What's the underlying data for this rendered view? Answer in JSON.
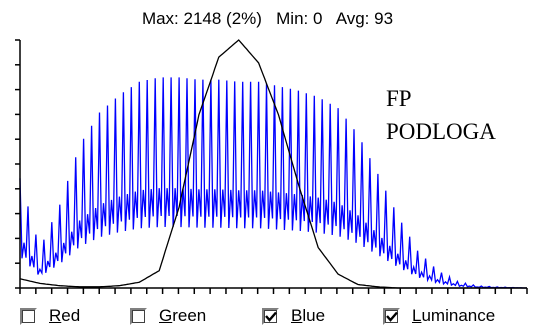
{
  "stats": {
    "max_label": "Max:",
    "max_value": "2148 (2%)",
    "min_label": "Min:",
    "min_value": "0",
    "avg_label": "Avg:",
    "avg_value": "93"
  },
  "annotation": {
    "line1": "FP",
    "line2": "PODLOGA"
  },
  "checkboxes": [
    {
      "id": "red",
      "first": "R",
      "rest": "ed",
      "checked": false
    },
    {
      "id": "green",
      "first": "G",
      "rest": "reen",
      "checked": false
    },
    {
      "id": "blue",
      "first": "B",
      "rest": "lue",
      "checked": true
    },
    {
      "id": "luminance",
      "first": "L",
      "rest": "uminance",
      "checked": true
    }
  ],
  "colors": {
    "blue_series": "#0000ff",
    "luminance_series": "#000000"
  },
  "chart_data": {
    "type": "line",
    "x_range": [
      0,
      255
    ],
    "y_range": [
      0,
      2148
    ],
    "series": [
      {
        "name": "Blue",
        "x": [
          0,
          10,
          20,
          30,
          40,
          50,
          60,
          70,
          80,
          90,
          100,
          110,
          120,
          130,
          140,
          150,
          160,
          170,
          180,
          190,
          200,
          210,
          220,
          230,
          240,
          255
        ],
        "values": [
          500,
          180,
          380,
          650,
          800,
          880,
          940,
          960,
          960,
          950,
          950,
          940,
          940,
          920,
          900,
          870,
          820,
          700,
          520,
          330,
          170,
          80,
          30,
          10,
          5,
          0
        ]
      },
      {
        "name": "Luminance",
        "x": [
          0,
          10,
          20,
          30,
          40,
          50,
          60,
          70,
          80,
          90,
          100,
          110,
          120,
          130,
          140,
          150,
          160,
          170,
          180,
          190,
          200,
          210,
          220,
          230,
          240,
          255
        ],
        "values": [
          80,
          40,
          20,
          10,
          10,
          20,
          50,
          150,
          700,
          1500,
          2000,
          2148,
          1950,
          1500,
          900,
          350,
          120,
          30,
          10,
          0,
          0,
          0,
          0,
          0,
          0,
          0
        ]
      }
    ]
  }
}
